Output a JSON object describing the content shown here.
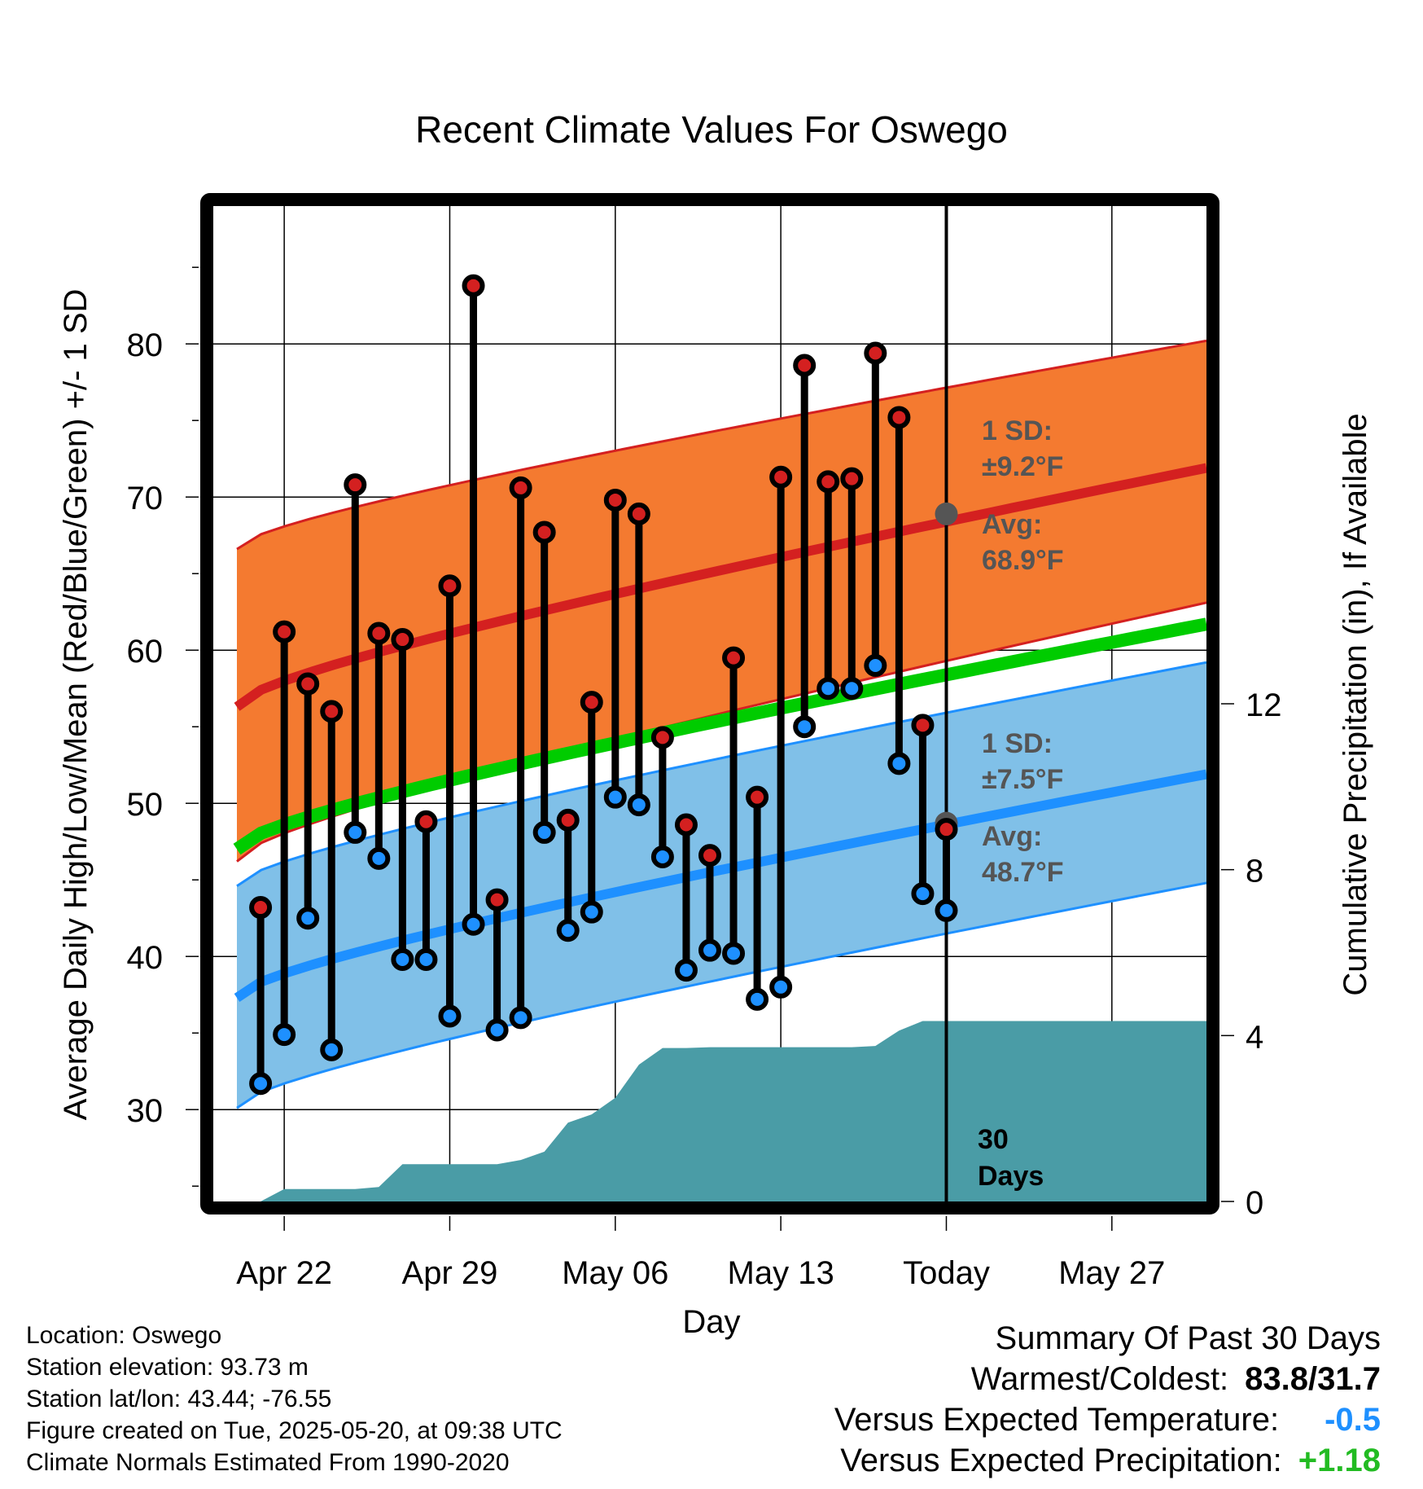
{
  "chart_data": {
    "type": "line",
    "title": "Recent Climate Values For Oswego",
    "xlabel": "Day",
    "ylabel": "Average Daily High/Low/Mean (Red/Blue/Green) +/- 1 SD",
    "y2label": "Cumulative Precipitation (in), If Available",
    "ylim": [
      24,
      89
    ],
    "y2lim": [
      0,
      24
    ],
    "xlim": [
      "2025-04-19",
      "2025-05-31"
    ],
    "x_tick_labels": [
      {
        "date": "2025-04-22",
        "label": "Apr 22"
      },
      {
        "date": "2025-04-29",
        "label": "Apr 29"
      },
      {
        "date": "2025-05-06",
        "label": "May 06"
      },
      {
        "date": "2025-05-13",
        "label": "May 13"
      },
      {
        "date": "2025-05-20",
        "label": "Today"
      },
      {
        "date": "2025-05-27",
        "label": "May 27"
      }
    ],
    "y_ticks": [
      30,
      40,
      50,
      60,
      70,
      80
    ],
    "y2_ticks": [
      0,
      4,
      8,
      12
    ],
    "grid": true,
    "normals": {
      "dates": [
        "2025-04-20",
        "2025-05-31"
      ],
      "high_mean": [
        56.3,
        71.9
      ],
      "high_upper": [
        66.6,
        80.2
      ],
      "high_lower": [
        46.2,
        63.1
      ],
      "mean": [
        47.0,
        61.7
      ],
      "low_mean": [
        37.3,
        51.9
      ],
      "low_upper": [
        44.6,
        59.2
      ],
      "low_lower": [
        30.1,
        44.8
      ]
    },
    "series": [
      {
        "name": "High",
        "x": [
          "2025-04-21",
          "2025-04-22",
          "2025-04-23",
          "2025-04-24",
          "2025-04-25",
          "2025-04-26",
          "2025-04-27",
          "2025-04-28",
          "2025-04-29",
          "2025-04-30",
          "2025-05-01",
          "2025-05-02",
          "2025-05-03",
          "2025-05-04",
          "2025-05-05",
          "2025-05-06",
          "2025-05-07",
          "2025-05-08",
          "2025-05-09",
          "2025-05-10",
          "2025-05-11",
          "2025-05-12",
          "2025-05-13",
          "2025-05-14",
          "2025-05-15",
          "2025-05-16",
          "2025-05-17",
          "2025-05-18",
          "2025-05-19",
          "2025-05-20"
        ],
        "values": [
          43.2,
          61.2,
          57.8,
          56.0,
          70.8,
          61.1,
          60.7,
          48.8,
          64.2,
          83.8,
          43.7,
          70.6,
          67.7,
          48.9,
          56.6,
          69.8,
          68.9,
          54.3,
          48.6,
          46.6,
          59.5,
          50.4,
          71.3,
          78.6,
          71.0,
          71.2,
          79.4,
          75.2,
          55.1,
          48.3
        ]
      },
      {
        "name": "Low",
        "x": [
          "2025-04-21",
          "2025-04-22",
          "2025-04-23",
          "2025-04-24",
          "2025-04-25",
          "2025-04-26",
          "2025-04-27",
          "2025-04-28",
          "2025-04-29",
          "2025-04-30",
          "2025-05-01",
          "2025-05-02",
          "2025-05-03",
          "2025-05-04",
          "2025-05-05",
          "2025-05-06",
          "2025-05-07",
          "2025-05-08",
          "2025-05-09",
          "2025-05-10",
          "2025-05-11",
          "2025-05-12",
          "2025-05-13",
          "2025-05-14",
          "2025-05-15",
          "2025-05-16",
          "2025-05-17",
          "2025-05-18",
          "2025-05-19",
          "2025-05-20"
        ],
        "values": [
          31.7,
          34.9,
          42.5,
          33.9,
          48.1,
          46.4,
          39.8,
          39.8,
          36.1,
          42.1,
          35.2,
          36.0,
          48.1,
          41.7,
          42.9,
          50.4,
          49.9,
          46.5,
          39.1,
          40.4,
          40.2,
          37.2,
          38.0,
          55.0,
          57.5,
          57.5,
          59.0,
          52.6,
          44.1,
          43.0
        ]
      },
      {
        "name": "Cumulative Precipitation",
        "x": [
          "2025-04-20",
          "2025-04-21",
          "2025-04-22",
          "2025-04-23",
          "2025-04-24",
          "2025-04-25",
          "2025-04-26",
          "2025-04-27",
          "2025-04-28",
          "2025-04-29",
          "2025-04-30",
          "2025-05-01",
          "2025-05-02",
          "2025-05-03",
          "2025-05-04",
          "2025-05-05",
          "2025-05-06",
          "2025-05-07",
          "2025-05-08",
          "2025-05-09",
          "2025-05-10",
          "2025-05-11",
          "2025-05-12",
          "2025-05-13",
          "2025-05-14",
          "2025-05-15",
          "2025-05-16",
          "2025-05-17",
          "2025-05-18",
          "2025-05-19",
          "2025-05-20",
          "2025-05-31"
        ],
        "values": [
          0,
          0,
          0.3,
          0.3,
          0.3,
          0.3,
          0.35,
          0.9,
          0.9,
          0.9,
          0.9,
          0.9,
          1.0,
          1.2,
          1.9,
          2.1,
          2.5,
          3.3,
          3.7,
          3.7,
          3.72,
          3.72,
          3.72,
          3.72,
          3.72,
          3.72,
          3.72,
          3.75,
          4.12,
          4.35,
          4.35,
          4.35
        ]
      }
    ],
    "annotations": {
      "high_sd": "1 SD:",
      "high_sd_value": "±9.2°F",
      "high_avg": "Avg:",
      "high_avg_value": "68.9°F",
      "low_sd": "1 SD:",
      "low_sd_value": "±7.5°F",
      "low_avg": "Avg:",
      "low_avg_value": "48.7°F",
      "days_line1": "30",
      "days_line2": "Days"
    },
    "colors": {
      "high_band": "#f47a30",
      "high_line": "#d42020",
      "mean_line": "#00cc00",
      "low_band": "#80c0e8",
      "low_line": "#1e90ff",
      "precip": "#4a9ca6",
      "high_dot": "#d42020",
      "low_dot": "#1e90ff",
      "annotation_text": "#555555"
    }
  },
  "info": {
    "location": "Location: Oswego",
    "elevation": "Station elevation: 93.73 m",
    "latlon": "Station lat/lon: 43.44; -76.55",
    "created": "Figure created on Tue, 2025-05-20, at 09:38 UTC",
    "normals": "Climate Normals Estimated From 1990-2020"
  },
  "summary": {
    "heading": "Summary Of Past 30 Days",
    "warmest_label": "Warmest/Coldest:",
    "warmest_value": "83.8/31.7",
    "temp_label": "Versus Expected Temperature:",
    "temp_value": "-0.5",
    "temp_color": "#1e90ff",
    "precip_label": "Versus Expected Precipitation:",
    "precip_value": "+1.18",
    "precip_color": "#22bb22"
  }
}
